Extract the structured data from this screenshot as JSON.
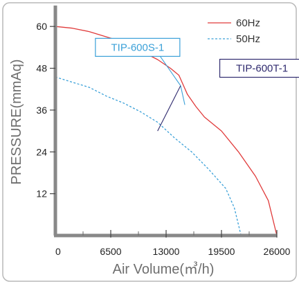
{
  "chart_data": {
    "type": "line",
    "xlabel": "Air Volume(㎥/h)",
    "ylabel": "PRESSURE(mmAq)",
    "xlim": [
      0,
      26000
    ],
    "ylim": [
      0,
      66
    ],
    "xticks": [
      0,
      6500,
      13000,
      19500,
      26000
    ],
    "yticks": [
      12,
      24,
      36,
      48,
      60
    ],
    "legend_position": "top-right",
    "series": [
      {
        "name": "60Hz",
        "color": "#e03a3a",
        "style": "solid",
        "points": [
          [
            0,
            60
          ],
          [
            2000,
            59.5
          ],
          [
            4000,
            58.5
          ],
          [
            6000,
            57
          ],
          [
            8000,
            55.5
          ],
          [
            10000,
            53
          ],
          [
            12000,
            50.5
          ],
          [
            13500,
            48
          ],
          [
            14500,
            46
          ],
          [
            15500,
            40.5
          ],
          [
            16500,
            37
          ],
          [
            17500,
            34
          ],
          [
            19500,
            30
          ],
          [
            21500,
            24
          ],
          [
            23500,
            17
          ],
          [
            25000,
            10
          ],
          [
            26000,
            0
          ]
        ]
      },
      {
        "name": "50Hz",
        "color": "#3aa0d8",
        "style": "dashed",
        "points": [
          [
            0,
            45.5
          ],
          [
            2000,
            44
          ],
          [
            4000,
            42.5
          ],
          [
            6000,
            40
          ],
          [
            8000,
            38
          ],
          [
            10000,
            35.5
          ],
          [
            12000,
            32.5
          ],
          [
            14000,
            28
          ],
          [
            16000,
            24
          ],
          [
            18000,
            19
          ],
          [
            20000,
            13.5
          ],
          [
            21000,
            8
          ],
          [
            21800,
            0
          ]
        ]
      }
    ],
    "annotations": [
      {
        "text": "TIP-600S-1",
        "color": "#3aa0d8",
        "box_anchor": [
          4700,
          54
        ],
        "leaders": [
          [
            12000,
            52.5
          ],
          [
            15200,
            37.5
          ]
        ],
        "junction": [
          14700,
          43
        ]
      },
      {
        "text": "TIP-600T-1",
        "color": "#2f2a6e",
        "box_anchor": [
          19300,
          48
        ],
        "leaders": [
          [
            12000,
            30
          ]
        ],
        "junction": [
          14700,
          43
        ]
      }
    ]
  }
}
